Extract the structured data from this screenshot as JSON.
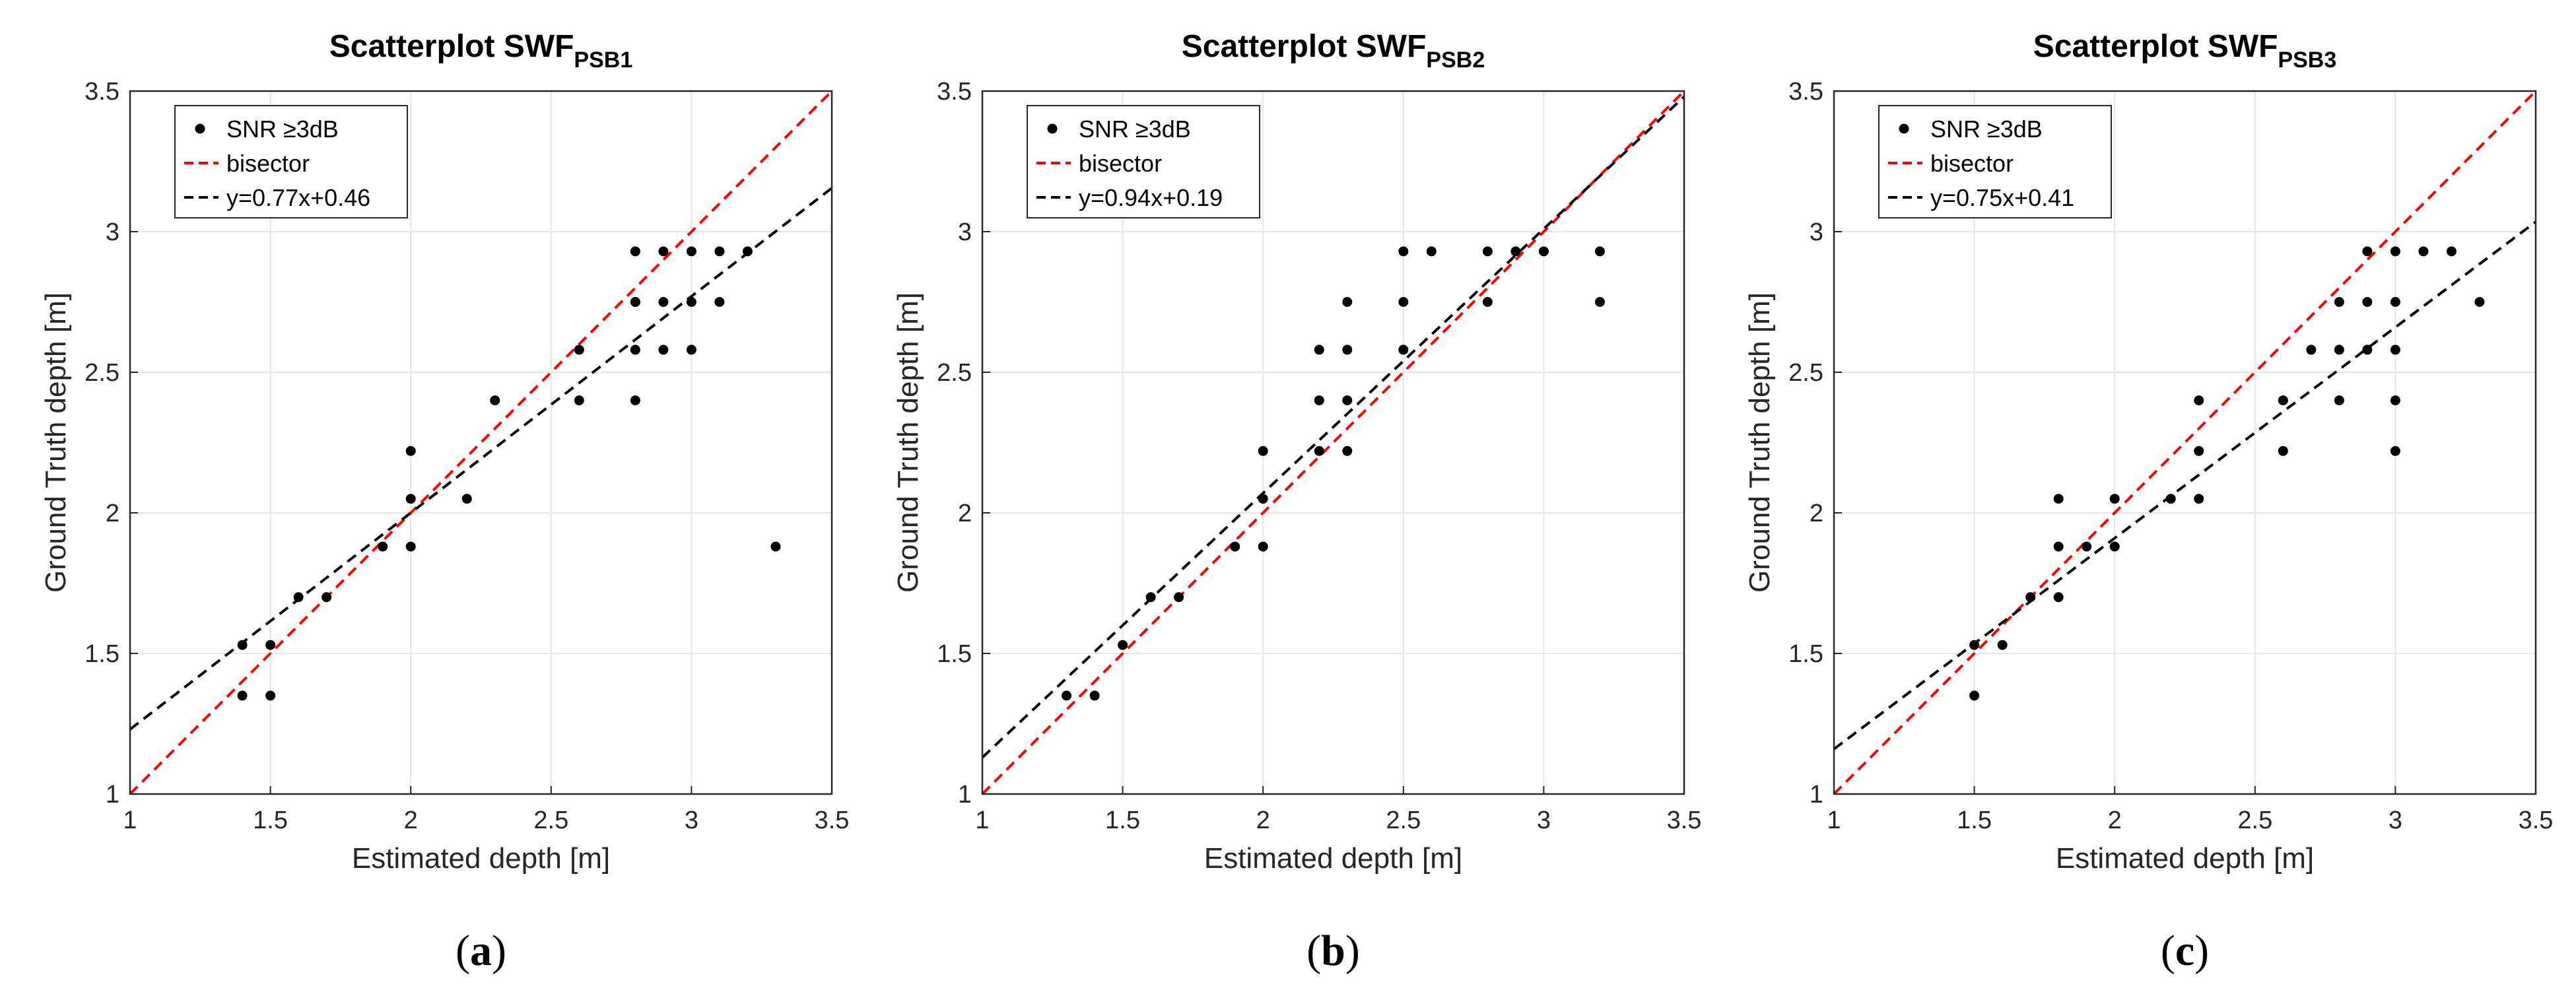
{
  "chart_data": [
    {
      "type": "scatter",
      "title": "Scatterplot SWF",
      "title_subscript": "PSB1",
      "xlabel": "Estimated depth [m]",
      "ylabel": "Ground Truth depth [m]",
      "xlim": [
        1,
        3.5
      ],
      "ylim": [
        1,
        3.5
      ],
      "xticks": [
        "1",
        "1.5",
        "2",
        "2.5",
        "3",
        "3.5"
      ],
      "yticks": [
        "1",
        "1.5",
        "2",
        "2.5",
        "3",
        "3.5"
      ],
      "grid": true,
      "legend_position": "top-left",
      "caption_open": "(",
      "caption": "a",
      "caption_close": ")",
      "series": [
        {
          "name": "SNR ≥3dB",
          "kind": "points",
          "color": "#000000",
          "x": [
            1.4,
            1.4,
            1.5,
            1.5,
            1.6,
            1.7,
            1.9,
            2.0,
            2.0,
            2.0,
            2.2,
            2.3,
            2.6,
            2.6,
            2.8,
            2.8,
            2.8,
            2.8,
            2.8,
            2.9,
            2.9,
            2.9,
            3.0,
            3.0,
            3.0,
            3.1,
            3.1,
            3.2,
            3.3
          ],
          "y": [
            1.35,
            1.53,
            1.35,
            1.53,
            1.7,
            1.7,
            1.88,
            1.88,
            2.05,
            2.22,
            2.05,
            2.4,
            2.4,
            2.58,
            2.4,
            2.58,
            2.75,
            2.75,
            2.93,
            2.58,
            2.75,
            2.93,
            2.58,
            2.75,
            2.93,
            2.75,
            2.93,
            2.93,
            1.88
          ]
        },
        {
          "name": "bisector",
          "kind": "line",
          "color": "#ff0000",
          "slope": 1,
          "intercept": 0
        },
        {
          "name": "y=0.77x+0.46",
          "kind": "line",
          "color": "#000000",
          "slope": 0.77,
          "intercept": 0.46
        }
      ]
    },
    {
      "type": "scatter",
      "title": "Scatterplot SWF",
      "title_subscript": "PSB2",
      "xlabel": "Estimated depth [m]",
      "ylabel": "Ground Truth depth [m]",
      "xlim": [
        1,
        3.5
      ],
      "ylim": [
        1,
        3.5
      ],
      "xticks": [
        "1",
        "1.5",
        "2",
        "2.5",
        "3",
        "3.5"
      ],
      "yticks": [
        "1",
        "1.5",
        "2",
        "2.5",
        "3",
        "3.5"
      ],
      "grid": true,
      "legend_position": "top-left",
      "caption_open": "(",
      "caption": "b",
      "caption_close": ")",
      "series": [
        {
          "name": "SNR ≥3dB",
          "kind": "points",
          "color": "#000000",
          "x": [
            1.3,
            1.4,
            1.5,
            1.6,
            1.7,
            1.9,
            2.0,
            2.0,
            2.0,
            2.2,
            2.2,
            2.2,
            2.3,
            2.3,
            2.3,
            2.3,
            2.5,
            2.5,
            2.5,
            2.6,
            2.8,
            2.8,
            2.9,
            3.0,
            3.2,
            3.2
          ],
          "y": [
            1.35,
            1.35,
            1.53,
            1.7,
            1.7,
            1.88,
            1.88,
            2.05,
            2.22,
            2.22,
            2.4,
            2.58,
            2.22,
            2.4,
            2.58,
            2.75,
            2.58,
            2.75,
            2.93,
            2.93,
            2.75,
            2.93,
            2.93,
            2.93,
            2.75,
            2.93
          ]
        },
        {
          "name": "bisector",
          "kind": "line",
          "color": "#ff0000",
          "slope": 1,
          "intercept": 0
        },
        {
          "name": "y=0.94x+0.19",
          "kind": "line",
          "color": "#000000",
          "slope": 0.94,
          "intercept": 0.19
        }
      ]
    },
    {
      "type": "scatter",
      "title": "Scatterplot SWF",
      "title_subscript": "PSB3",
      "xlabel": "Estimated depth [m]",
      "ylabel": "Ground Truth depth [m]",
      "xlim": [
        1,
        3.5
      ],
      "ylim": [
        1,
        3.5
      ],
      "xticks": [
        "1",
        "1.5",
        "2",
        "2.5",
        "3",
        "3.5"
      ],
      "yticks": [
        "1",
        "1.5",
        "2",
        "2.5",
        "3",
        "3.5"
      ],
      "grid": true,
      "legend_position": "top-left",
      "caption_open": "(",
      "caption": "c",
      "caption_close": ")",
      "series": [
        {
          "name": "SNR ≥3dB",
          "kind": "points",
          "color": "#000000",
          "x": [
            1.5,
            1.5,
            1.6,
            1.7,
            1.8,
            1.8,
            1.8,
            1.9,
            2.0,
            2.0,
            2.2,
            2.3,
            2.3,
            2.3,
            2.6,
            2.6,
            2.7,
            2.8,
            2.8,
            2.8,
            2.9,
            2.9,
            2.9,
            3.0,
            3.0,
            3.0,
            3.0,
            3.0,
            3.1,
            3.2,
            3.3
          ],
          "y": [
            1.35,
            1.53,
            1.53,
            1.7,
            1.7,
            1.88,
            2.05,
            1.88,
            1.88,
            2.05,
            2.05,
            2.05,
            2.22,
            2.4,
            2.22,
            2.4,
            2.58,
            2.4,
            2.58,
            2.75,
            2.58,
            2.75,
            2.93,
            2.22,
            2.4,
            2.58,
            2.75,
            2.93,
            2.93,
            2.93,
            2.75
          ]
        },
        {
          "name": "bisector",
          "kind": "line",
          "color": "#ff0000",
          "slope": 1,
          "intercept": 0
        },
        {
          "name": "y=0.75x+0.41",
          "kind": "line",
          "color": "#000000",
          "slope": 0.75,
          "intercept": 0.41
        }
      ]
    }
  ]
}
